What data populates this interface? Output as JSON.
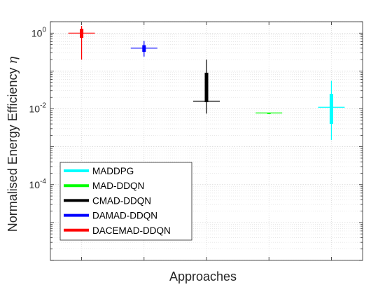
{
  "chart_data": {
    "type": "box",
    "title": "",
    "xlabel": "Approaches",
    "ylabel": "Normalised Energy Efficiency",
    "ylabel_symbol": "η",
    "yscale": "log",
    "ylim": [
      1e-06,
      2
    ],
    "yticks": [
      {
        "value": 1,
        "base": "10",
        "exp": "0"
      },
      {
        "value": 0.01,
        "base": "10",
        "exp": "-2"
      },
      {
        "value": 0.0001,
        "base": "10",
        "exp": "-4"
      }
    ],
    "grid": true,
    "legend_position": "bottom-left",
    "series": [
      {
        "name": "MADDPG",
        "color": "#00ffff",
        "position": 4,
        "min": 0.0015,
        "q1": 0.004,
        "median": 0.011,
        "q3": 0.025,
        "max": 0.055
      },
      {
        "name": "MAD-DDQN",
        "color": "#00ff00",
        "position": 3,
        "min": 0.0078,
        "q1": 0.0078,
        "median": 0.0078,
        "q3": 0.0078,
        "max": 0.0078
      },
      {
        "name": "CMAD-DDQN",
        "color": "#000000",
        "position": 2,
        "min": 0.0075,
        "q1": 0.015,
        "median": 0.016,
        "q3": 0.09,
        "max": 0.2
      },
      {
        "name": "DAMAD-DDQN",
        "color": "#0000ff",
        "position": 1,
        "min": 0.24,
        "q1": 0.32,
        "median": 0.4,
        "q3": 0.48,
        "max": 0.62
      },
      {
        "name": "DACEMAD-DDQN",
        "color": "#ff0000",
        "position": 0,
        "min": 0.2,
        "q1": 0.75,
        "median": 1.0,
        "q3": 1.3,
        "max": 1.55
      }
    ]
  }
}
